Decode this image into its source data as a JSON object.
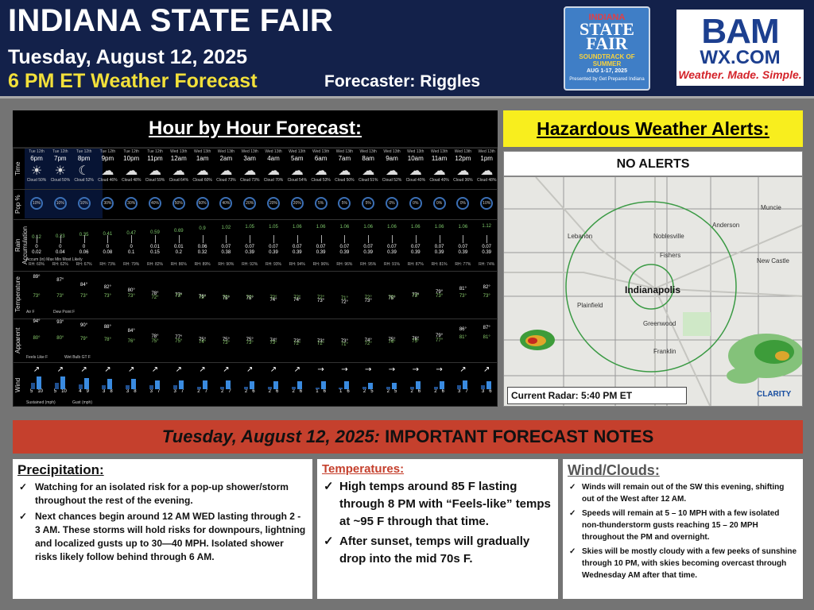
{
  "header": {
    "title": "INDIANA STATE FAIR",
    "date": "Tuesday, August 12, 2025",
    "subtitle": "6 PM ET Weather Forecast",
    "forecaster": "Forecaster: Riggles",
    "fair_logo": {
      "line1": "INDIANA",
      "line2": "STATE",
      "line3": "FAIR",
      "line4": "SOUNDTRACK OF SUMMER",
      "line5": "AUG 1-17, 2025",
      "line6": "Presented by Get Prepared Indiana"
    },
    "bam_logo": {
      "text1": "BAM",
      "text2": "WX.COM",
      "tagline": "Weather. Made. Simple."
    }
  },
  "hourly": {
    "title": "Hour by Hour Forecast:",
    "row_labels": [
      "Time",
      "Pop %",
      "Rain Accumulation",
      "Temperature",
      "Apparent",
      "Wind"
    ],
    "accum_legend": "Accum (in)  Max  Min  Most Likely",
    "temp_legend": [
      "Air F",
      "Dew Point F"
    ],
    "apparent_legend": [
      "Feels Like F",
      "Wet Bulb GT F"
    ],
    "wind_legend": [
      "Sustained (mph)",
      "Gust (mph)"
    ],
    "hours": [
      {
        "day": "Tue 12th",
        "time": "6pm",
        "icon": "☀",
        "cloud": "Cloud 50%",
        "pop": "10%",
        "rain_max": "0.12",
        "accum": "0",
        "accum2": "0.02",
        "rh": "RH: 60%",
        "temp": "89°",
        "dew": "73°",
        "feels": "94°",
        "wbgt": "80°",
        "wind_dir": "↗",
        "sus": "5",
        "gust": "10"
      },
      {
        "day": "Tue 12th",
        "time": "7pm",
        "icon": "☀",
        "cloud": "Cloud 50%",
        "pop": "10%",
        "rain_max": "0.23",
        "accum": "0",
        "accum2": "0.04",
        "rh": "RH: 62%",
        "temp": "87°",
        "dew": "73°",
        "feels": "93°",
        "wbgt": "80°",
        "wind_dir": "↗",
        "sus": "5",
        "gust": "10"
      },
      {
        "day": "Tue 12th",
        "time": "8pm",
        "icon": "☾",
        "cloud": "Cloud 52%",
        "pop": "10%",
        "rain_max": "0.35",
        "accum": "0",
        "accum2": "0.06",
        "rh": "RH: 67%",
        "temp": "84°",
        "dew": "73°",
        "feels": "90°",
        "wbgt": "79°",
        "wind_dir": "↗",
        "sus": "4",
        "gust": "9"
      },
      {
        "day": "Tue 12th",
        "time": "9pm",
        "icon": "☁",
        "cloud": "Cloud 46%",
        "pop": "30%",
        "rain_max": "0.41",
        "accum": "0",
        "accum2": "0.08",
        "rh": "RH: 73%",
        "temp": "82°",
        "dew": "73°",
        "feels": "88°",
        "wbgt": "78°",
        "wind_dir": "↗",
        "sus": "3",
        "gust": "8"
      },
      {
        "day": "Tue 12th",
        "time": "10pm",
        "icon": "☁",
        "cloud": "Cloud 48%",
        "pop": "30%",
        "rain_max": "0.47",
        "accum": "0",
        "accum2": "0.1",
        "rh": "RH: 79%",
        "temp": "80°",
        "dew": "73°",
        "feels": "84°",
        "wbgt": "76°",
        "wind_dir": "↗",
        "sus": "3",
        "gust": "8"
      },
      {
        "day": "Tue 12th",
        "time": "11pm",
        "icon": "☁",
        "cloud": "Cloud 59%",
        "pop": "40%",
        "rain_max": "0.59",
        "accum": "0.01",
        "accum2": "0.15",
        "rh": "RH: 82%",
        "temp": "78°",
        "dew": "72°",
        "feels": "78°",
        "wbgt": "75°",
        "wind_dir": "↗",
        "sus": "3",
        "gust": "7"
      },
      {
        "day": "Wed 13th",
        "time": "12am",
        "icon": "☁",
        "cloud": "Cloud 64%",
        "pop": "50%",
        "rain_max": "0.69",
        "accum": "0.01",
        "accum2": "0.2",
        "rh": "RH: 86%",
        "temp": "77°",
        "dew": "73°",
        "feels": "77°",
        "wbgt": "75°",
        "wind_dir": "↗",
        "sus": "3",
        "gust": "7"
      },
      {
        "day": "Wed 13th",
        "time": "1am",
        "icon": "☁",
        "cloud": "Cloud 60%",
        "pop": "60%",
        "rain_max": "0.9",
        "accum": "0.06",
        "accum2": "0.32",
        "rh": "RH: 89%",
        "temp": "76°",
        "dew": "72°",
        "feels": "75°",
        "wbgt": "74°",
        "wind_dir": "↗",
        "sus": "2",
        "gust": "7"
      },
      {
        "day": "Wed 13th",
        "time": "2am",
        "icon": "☁",
        "cloud": "Cloud 73%",
        "pop": "40%",
        "rain_max": "1.02",
        "accum": "0.07",
        "accum2": "0.38",
        "rh": "RH: 90%",
        "temp": "75°",
        "dew": "72°",
        "feels": "75°",
        "wbgt": "73°",
        "wind_dir": "↗",
        "sus": "2",
        "gust": "7"
      },
      {
        "day": "Wed 13th",
        "time": "3am",
        "icon": "☁",
        "cloud": "Cloud 73%",
        "pop": "20%",
        "rain_max": "1.05",
        "accum": "0.07",
        "accum2": "0.39",
        "rh": "RH: 92%",
        "temp": "75°",
        "dew": "72°",
        "feels": "75°",
        "wbgt": "73°",
        "wind_dir": "↗",
        "sus": "2",
        "gust": "6"
      },
      {
        "day": "Wed 13th",
        "time": "4am",
        "icon": "☁",
        "cloud": "Cloud 70%",
        "pop": "20%",
        "rain_max": "1.05",
        "accum": "0.07",
        "accum2": "0.39",
        "rh": "RH: 93%",
        "temp": "74°",
        "dew": "72°",
        "feels": "74°",
        "wbgt": "73°",
        "wind_dir": "↗",
        "sus": "2",
        "gust": "6"
      },
      {
        "day": "Wed 13th",
        "time": "5am",
        "icon": "☁",
        "cloud": "Cloud 54%",
        "pop": "20%",
        "rain_max": "1.06",
        "accum": "0.07",
        "accum2": "0.39",
        "rh": "RH: 94%",
        "temp": "74°",
        "dew": "72°",
        "feels": "73°",
        "wbgt": "72°",
        "wind_dir": "↗",
        "sus": "2",
        "gust": "6"
      },
      {
        "day": "Wed 13th",
        "time": "6am",
        "icon": "☁",
        "cloud": "Cloud 53%",
        "pop": "5%",
        "rain_max": "1.06",
        "accum": "0.07",
        "accum2": "0.39",
        "rh": "RH: 96%",
        "temp": "73°",
        "dew": "72°",
        "feels": "73°",
        "wbgt": "72°",
        "wind_dir": "→",
        "sus": "1",
        "gust": "6"
      },
      {
        "day": "Wed 13th",
        "time": "7am",
        "icon": "☁",
        "cloud": "Cloud 50%",
        "pop": "5%",
        "rain_max": "1.06",
        "accum": "0.07",
        "accum2": "0.39",
        "rh": "RH: 96%",
        "temp": "72°",
        "dew": "71°",
        "feels": "73°",
        "wbgt": "71°",
        "wind_dir": "→",
        "sus": "1",
        "gust": "6"
      },
      {
        "day": "Wed 13th",
        "time": "8am",
        "icon": "☁",
        "cloud": "Cloud 51%",
        "pop": "5%",
        "rain_max": "1.06",
        "accum": "0.07",
        "accum2": "0.39",
        "rh": "RH: 95%",
        "temp": "73°",
        "dew": "72°",
        "feels": "74°",
        "wbgt": "72°",
        "wind_dir": "→",
        "sus": "2",
        "gust": "5"
      },
      {
        "day": "Wed 13th",
        "time": "9am",
        "icon": "☁",
        "cloud": "Cloud 52%",
        "pop": "0%",
        "rain_max": "1.06",
        "accum": "0.07",
        "accum2": "0.39",
        "rh": "RH: 91%",
        "temp": "75°",
        "dew": "72°",
        "feels": "75°",
        "wbgt": "74°",
        "wind_dir": "→",
        "sus": "2",
        "gust": "5"
      },
      {
        "day": "Wed 13th",
        "time": "10am",
        "icon": "☁",
        "cloud": "Cloud 40%",
        "pop": "0%",
        "rain_max": "1.06",
        "accum": "0.07",
        "accum2": "0.39",
        "rh": "RH: 87%",
        "temp": "77°",
        "dew": "73°",
        "feels": "76°",
        "wbgt": "75°",
        "wind_dir": "→",
        "sus": "2",
        "gust": "6"
      },
      {
        "day": "Wed 13th",
        "time": "11am",
        "icon": "☁",
        "cloud": "Cloud 40%",
        "pop": "0%",
        "rain_max": "1.06",
        "accum": "0.07",
        "accum2": "0.39",
        "rh": "RH: 81%",
        "temp": "79°",
        "dew": "73°",
        "feels": "79°",
        "wbgt": "77°",
        "wind_dir": "→",
        "sus": "2",
        "gust": "6"
      },
      {
        "day": "Wed 13th",
        "time": "12pm",
        "icon": "☁",
        "cloud": "Cloud 36%",
        "pop": "0%",
        "rain_max": "1.06",
        "accum": "0.07",
        "accum2": "0.39",
        "rh": "RH: 77%",
        "temp": "81°",
        "dew": "73°",
        "feels": "86°",
        "wbgt": "81°",
        "wind_dir": "↗",
        "sus": "3",
        "gust": "7"
      },
      {
        "day": "Wed 13th",
        "time": "1pm",
        "icon": "☁",
        "cloud": "Cloud 48%",
        "pop": "10%",
        "rain_max": "1.12",
        "accum": "0.07",
        "accum2": "0.39",
        "rh": "RH: 74%",
        "temp": "82°",
        "dew": "73°",
        "feels": "87°",
        "wbgt": "81°",
        "wind_dir": "↗",
        "sus": "3",
        "gust": "6"
      }
    ]
  },
  "hazard": {
    "title": "Hazardous Weather Alerts:",
    "status": "NO ALERTS",
    "radar_label": "Current Radar: 5:40 PM ET",
    "cities": [
      "Muncie",
      "Anderson",
      "Lebanon",
      "Noblesville",
      "Fishers",
      "New Castle",
      "Indianapolis",
      "Plainfield",
      "Greenwood",
      "Franklin"
    ],
    "brand": "CLARITY"
  },
  "notes": {
    "bar_date": "Tuesday, August 12, 2025:",
    "bar_title": " IMPORTANT FORECAST NOTES",
    "precip": {
      "title": "Precipitation:",
      "items": [
        "Watching for an isolated risk for a pop-up shower/storm throughout the rest of the evening.",
        "Next chances begin around 12 AM WED lasting through 2 - 3 AM. These storms will hold risks for downpours, lightning and localized gusts up to 30—40 MPH. Isolated shower risks likely follow behind through 6 AM."
      ]
    },
    "temps": {
      "title": "Temperatures:",
      "items": [
        "High temps around 85 F lasting through 8 PM with “Feels-like” temps at ~95 F through that time.",
        "After sunset, temps will gradually drop into the mid 70s F."
      ]
    },
    "wind": {
      "title": "Wind/Clouds:",
      "items": [
        "Winds will remain out of the SW this evening, shifting out of the West after 12 AM.",
        "Speeds will remain at 5 – 10 MPH with a few isolated non-thunderstorm gusts reaching 15 – 20 MPH throughout the PM and overnight.",
        "Skies will be mostly cloudy with a few peeks of sunshine through 10 PM, with skies becoming overcast through Wednesday AM after that time."
      ]
    },
    "check": "✓"
  }
}
